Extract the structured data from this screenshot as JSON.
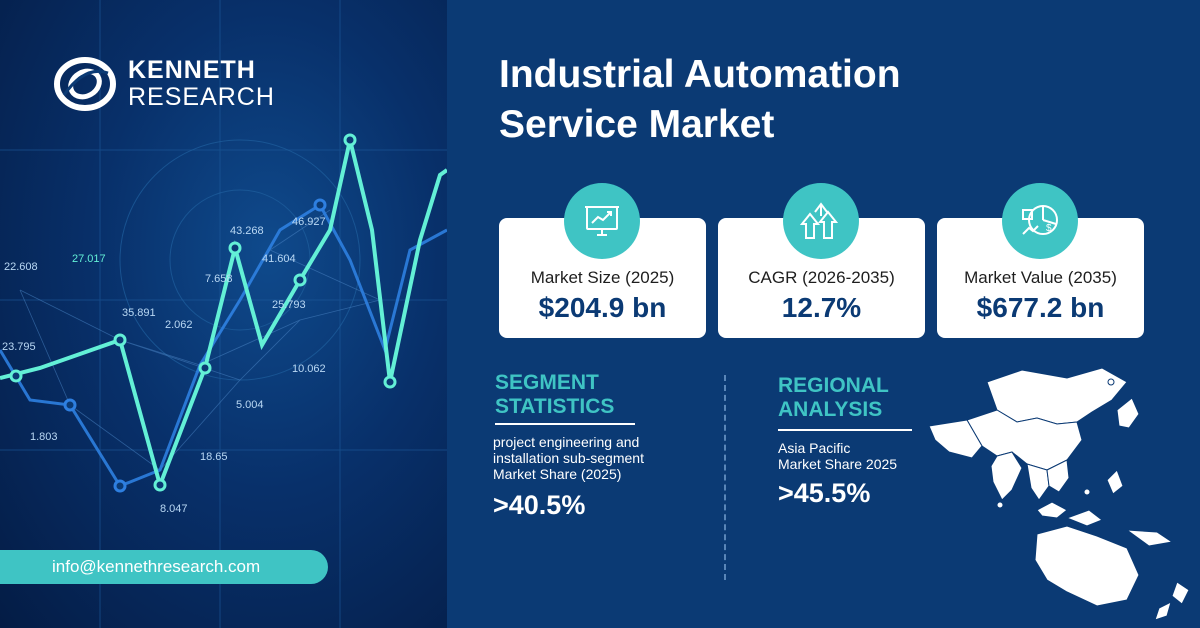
{
  "brand": {
    "name_line1": "KENNETH",
    "name_line2": "RESEARCH",
    "email": "info@kennethresearch.com"
  },
  "title": {
    "line1": "Industrial Automation",
    "line2": "Service Market"
  },
  "cards": [
    {
      "label": "Market Size (2025)",
      "value": "$204.9 bn",
      "icon": "presentation-chart-icon"
    },
    {
      "label": "CAGR (2026-2035)",
      "value": "12.7%",
      "icon": "growth-arrows-icon"
    },
    {
      "label": "Market Value  (2035)",
      "value": "$677.2 bn",
      "icon": "pie-dollar-icon"
    }
  ],
  "segment": {
    "title_line1": "SEGMENT",
    "title_line2": "STATISTICS",
    "desc_line1": "project engineering and",
    "desc_line2": "installation sub-segment",
    "desc_line3": "Market Share (2025)",
    "value": ">40.5%"
  },
  "regional": {
    "title_line1": "REGIONAL",
    "title_line2": "ANALYSIS",
    "desc_line1": "Asia Pacific",
    "desc_line2": "Market Share 2025",
    "value": ">45.5%"
  },
  "background_numbers": [
    "22.608",
    "27.017",
    "23.795",
    "35.891",
    "2.062",
    "7.658",
    "43.268",
    "46.927",
    "41.604",
    "25.793",
    "1.803",
    "5.004",
    "18.65",
    "8.047",
    "10.062"
  ],
  "colors": {
    "navy": "#0b3a74",
    "teal": "#3fc4c4",
    "white": "#ffffff"
  }
}
